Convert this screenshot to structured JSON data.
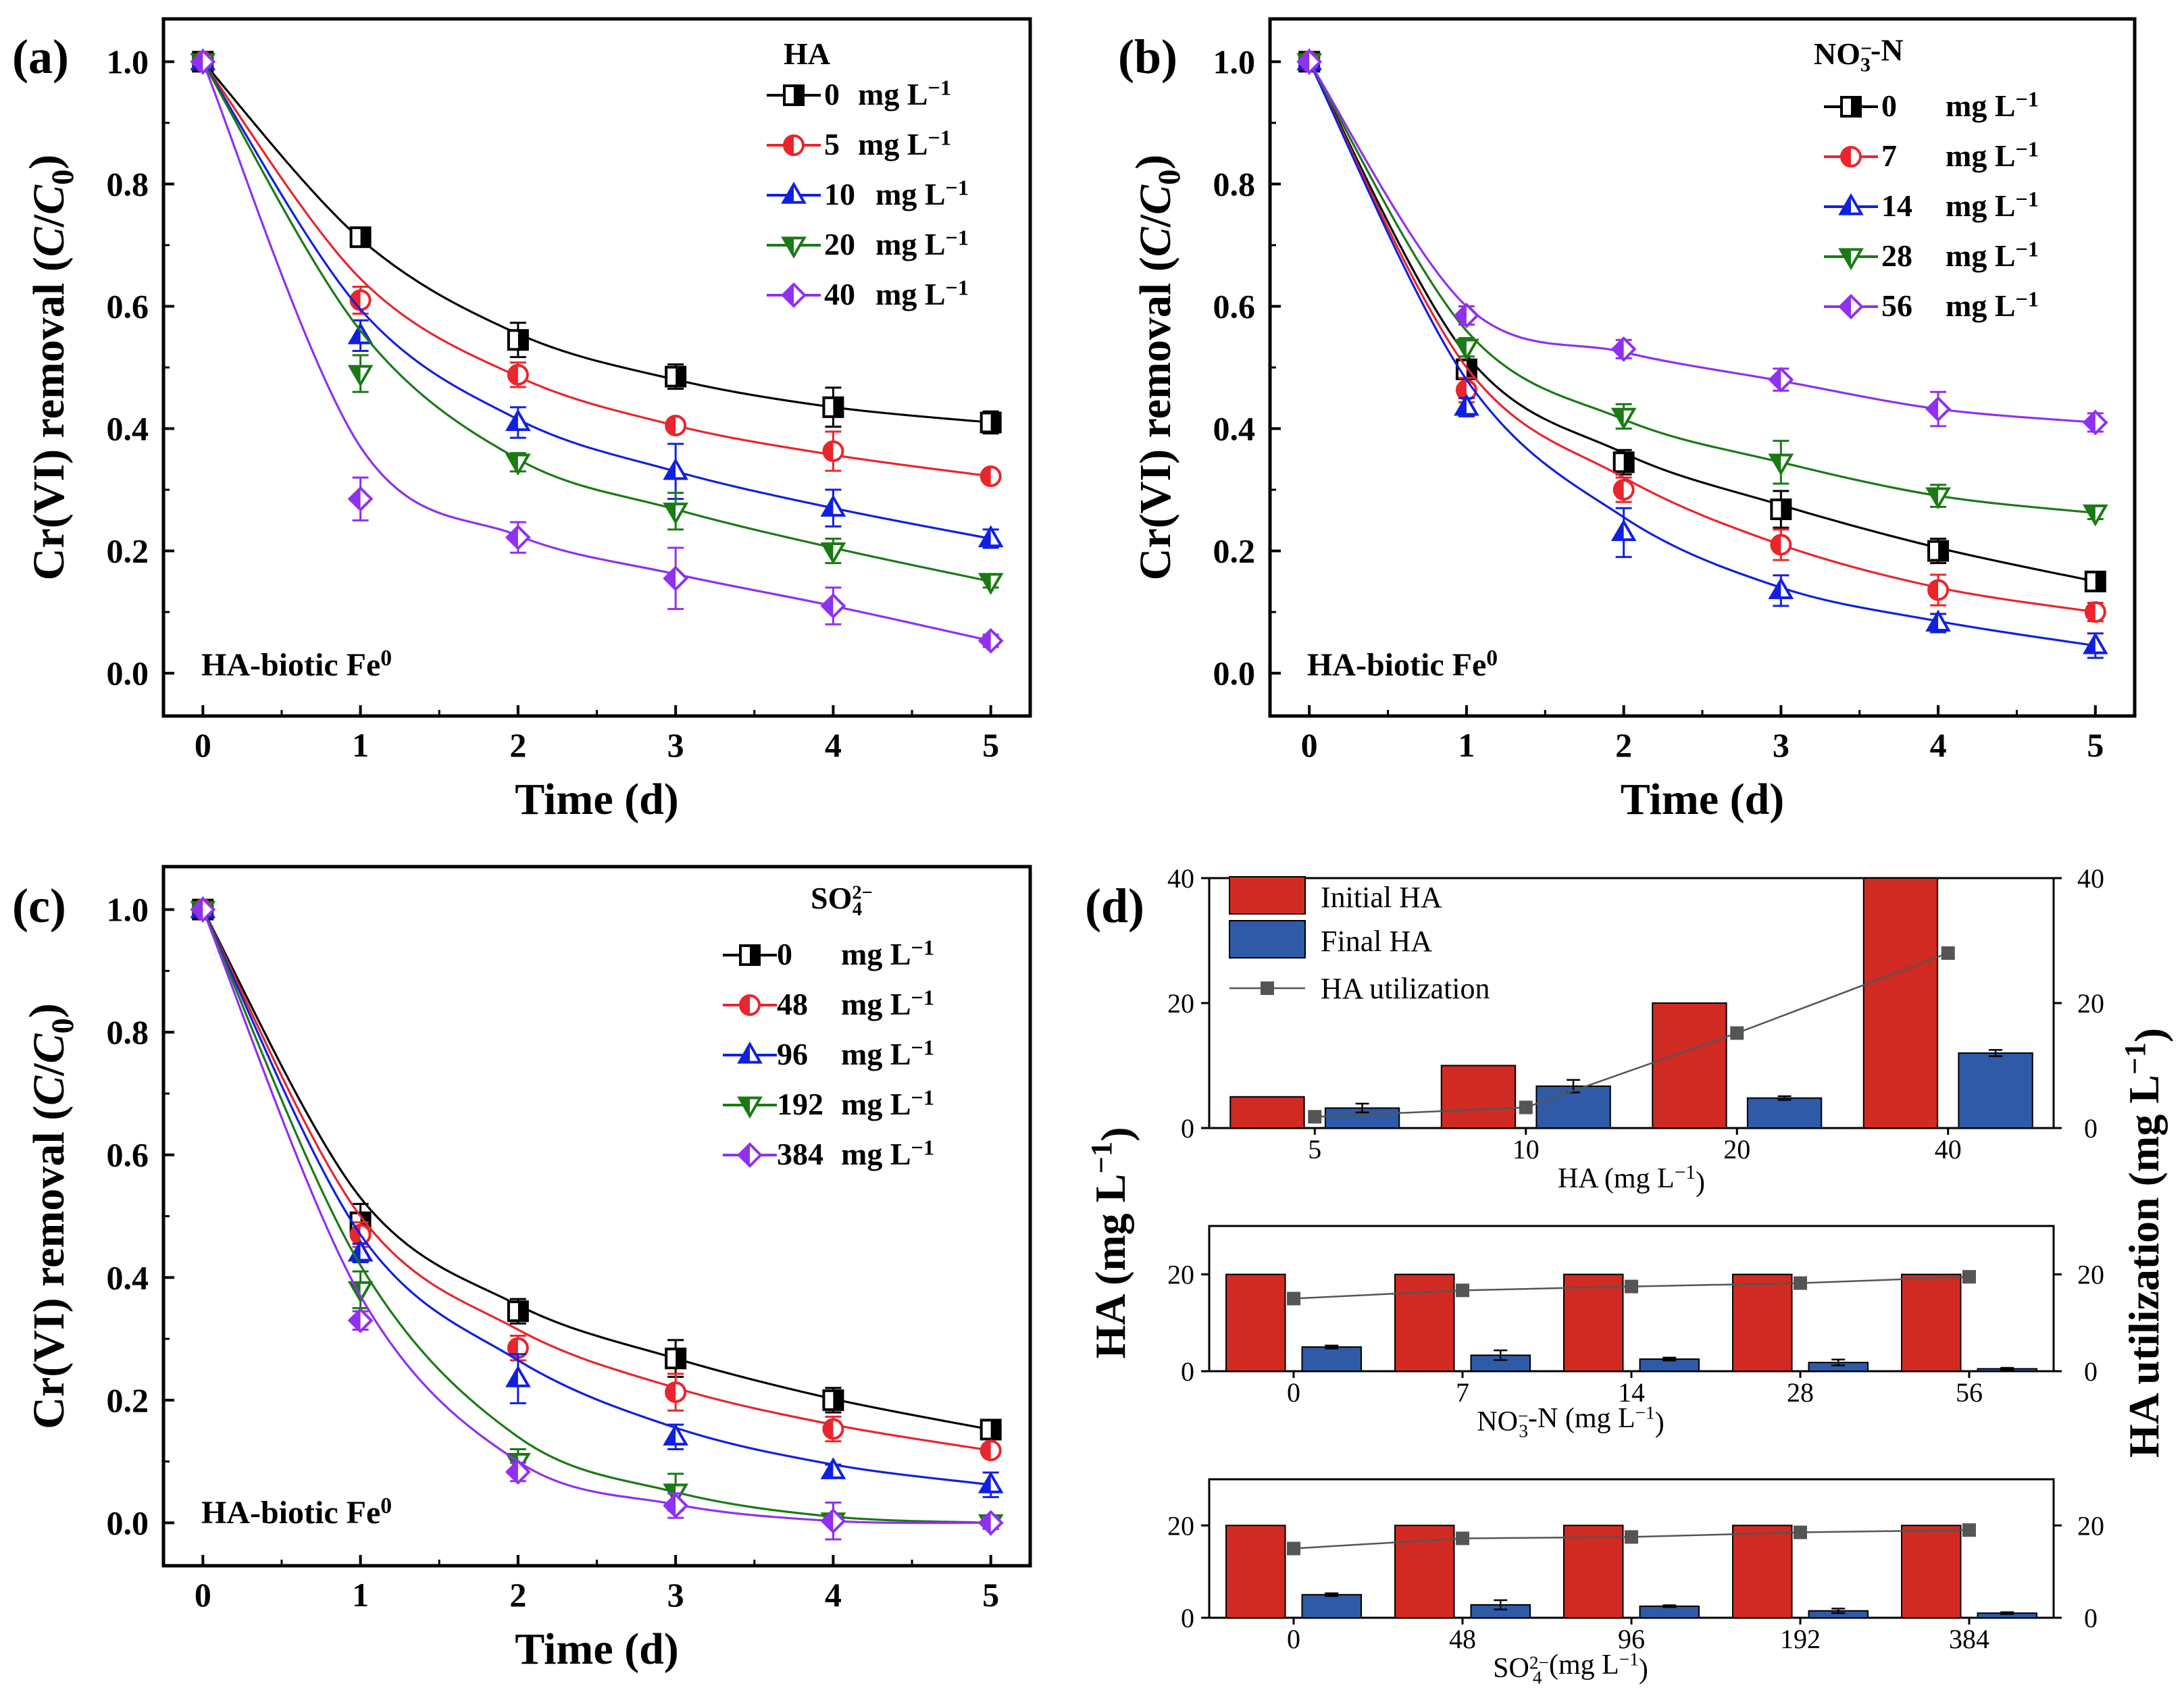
{
  "figure": {
    "panel_labels": [
      "(a)",
      "(b)",
      "(c)",
      "(d)"
    ]
  },
  "chart_data": [
    {
      "panel": "(a)",
      "type": "line",
      "subtype": "scatter-with-fit",
      "xlabel": "Time (d)",
      "ylabel": "Cr(VI) removal (C/C0)",
      "ylabel_parts": [
        "Cr(VI) removal (",
        "C",
        "/",
        "C",
        "0",
        ")"
      ],
      "xlim": [
        -0.25,
        5.25
      ],
      "ylim": [
        -0.07,
        1.07
      ],
      "xticks": [
        0,
        1,
        2,
        3,
        4,
        5
      ],
      "yticks": [
        0.0,
        0.2,
        0.4,
        0.6,
        0.8,
        1.0
      ],
      "ytick_labels": [
        "0.0",
        "0.2",
        "0.4",
        "0.6",
        "0.8",
        "1.0"
      ],
      "legend_title": "HA",
      "annotation": "HA-biotic Fe",
      "annotation_sup": "0",
      "x": [
        0,
        1,
        2,
        3,
        4,
        5
      ],
      "series": [
        {
          "label_value": "0",
          "unit": "mg L",
          "unit_sup": "−1",
          "color": "#000000",
          "marker": "square",
          "values": [
            1.0,
            0.713,
            0.545,
            0.485,
            0.435,
            0.41
          ],
          "err": [
            0,
            0.012,
            0.028,
            0.02,
            0.032,
            0.018
          ],
          "fit": [
            1.0,
            0.71,
            0.555,
            0.48,
            0.435,
            0.41
          ]
        },
        {
          "label_value": "5",
          "unit": "mg L",
          "unit_sup": "−1",
          "color": "#e8262c",
          "marker": "circle",
          "values": [
            1.0,
            0.61,
            0.488,
            0.405,
            0.363,
            0.322
          ],
          "err": [
            0,
            0.022,
            0.02,
            0.01,
            0.032,
            0.01
          ],
          "fit": [
            1.0,
            0.645,
            0.485,
            0.405,
            0.357,
            0.322
          ]
        },
        {
          "label_value": "10",
          "unit": "mg L",
          "unit_sup": "−1",
          "color": "#1020e0",
          "marker": "triangle-up",
          "values": [
            1.0,
            0.552,
            0.41,
            0.33,
            0.27,
            0.22
          ],
          "err": [
            0,
            0.025,
            0.025,
            0.045,
            0.03,
            0.015
          ],
          "fit": [
            1.0,
            0.595,
            0.415,
            0.33,
            0.27,
            0.22
          ]
        },
        {
          "label_value": "20",
          "unit": "mg L",
          "unit_sup": "−1",
          "color": "#1a7a14",
          "marker": "triangle-down",
          "values": [
            1.0,
            0.49,
            0.345,
            0.265,
            0.2,
            0.15
          ],
          "err": [
            0,
            0.03,
            0.015,
            0.03,
            0.02,
            0.01
          ],
          "fit": [
            1.0,
            0.56,
            0.35,
            0.268,
            0.205,
            0.15
          ]
        },
        {
          "label_value": "40",
          "unit": "mg L",
          "unit_sup": "−1",
          "color": "#9030f0",
          "marker": "diamond",
          "values": [
            1.0,
            0.285,
            0.222,
            0.155,
            0.11,
            0.053
          ],
          "err": [
            0,
            0.035,
            0.025,
            0.05,
            0.03,
            0.01
          ],
          "fit": [
            1.0,
            0.37,
            0.225,
            0.162,
            0.11,
            0.053
          ]
        }
      ]
    },
    {
      "panel": "(b)",
      "type": "line",
      "subtype": "scatter-with-fit",
      "xlabel": "Time (d)",
      "ylabel": "Cr(VI) removal (C/C0)",
      "ylabel_parts": [
        "Cr(VI) removal (",
        "C",
        "/",
        "C",
        "0",
        ")"
      ],
      "xlim": [
        -0.25,
        5.25
      ],
      "ylim": [
        -0.07,
        1.07
      ],
      "xticks": [
        0,
        1,
        2,
        3,
        4,
        5
      ],
      "yticks": [
        0.0,
        0.2,
        0.4,
        0.6,
        0.8,
        1.0
      ],
      "ytick_labels": [
        "0.0",
        "0.2",
        "0.4",
        "0.6",
        "0.8",
        "1.0"
      ],
      "legend_title": "NO",
      "legend_title_sub": "3",
      "legend_title_sup": "−",
      "legend_title_tail": "-N",
      "annotation": "HA-biotic Fe",
      "annotation_sup": "0",
      "x": [
        0,
        1,
        2,
        3,
        4,
        5
      ],
      "series": [
        {
          "label_value": "0",
          "unit": "mg L",
          "unit_sup": "−1",
          "color": "#000000",
          "marker": "square",
          "values": [
            1.0,
            0.497,
            0.345,
            0.268,
            0.2,
            0.15
          ],
          "err": [
            0,
            0.015,
            0.02,
            0.03,
            0.02,
            0.012
          ],
          "fit": [
            1.0,
            0.52,
            0.36,
            0.275,
            0.205,
            0.15
          ]
        },
        {
          "label_value": "7",
          "unit": "mg L",
          "unit_sup": "−1",
          "color": "#e8262c",
          "marker": "circle",
          "values": [
            1.0,
            0.463,
            0.3,
            0.21,
            0.136,
            0.1
          ],
          "err": [
            0,
            0.02,
            0.02,
            0.025,
            0.025,
            0.015
          ],
          "fit": [
            1.0,
            0.5,
            0.32,
            0.21,
            0.14,
            0.1
          ]
        },
        {
          "label_value": "14",
          "unit": "mg L",
          "unit_sup": "−1",
          "color": "#1020e0",
          "marker": "triangle-up",
          "values": [
            1.0,
            0.435,
            0.23,
            0.135,
            0.082,
            0.045
          ],
          "err": [
            0,
            0.015,
            0.04,
            0.025,
            0.015,
            0.02
          ],
          "fit": [
            1.0,
            0.48,
            0.255,
            0.14,
            0.085,
            0.045
          ]
        },
        {
          "label_value": "28",
          "unit": "mg L",
          "unit_sup": "−1",
          "color": "#1a7a14",
          "marker": "triangle-down",
          "values": [
            1.0,
            0.533,
            0.42,
            0.345,
            0.29,
            0.262
          ],
          "err": [
            0,
            0.015,
            0.02,
            0.035,
            0.018,
            0.01
          ],
          "fit": [
            1.0,
            0.56,
            0.415,
            0.345,
            0.29,
            0.262
          ]
        },
        {
          "label_value": "56",
          "unit": "mg L",
          "unit_sup": "−1",
          "color": "#9030f0",
          "marker": "diamond",
          "values": [
            1.0,
            0.585,
            0.53,
            0.48,
            0.432,
            0.41
          ],
          "err": [
            0,
            0.015,
            0.015,
            0.018,
            0.028,
            0.015
          ],
          "fit": [
            1.0,
            0.6,
            0.525,
            0.478,
            0.432,
            0.41
          ]
        }
      ]
    },
    {
      "panel": "(c)",
      "type": "line",
      "subtype": "scatter-with-fit",
      "xlabel": "Time (d)",
      "ylabel": "Cr(VI) removal (C/C0)",
      "ylabel_parts": [
        "Cr(VI) removal (",
        "C",
        "/",
        "C",
        "0",
        ")"
      ],
      "xlim": [
        -0.25,
        5.25
      ],
      "ylim": [
        -0.07,
        1.07
      ],
      "xticks": [
        0,
        1,
        2,
        3,
        4,
        5
      ],
      "yticks": [
        0.0,
        0.2,
        0.4,
        0.6,
        0.8,
        1.0
      ],
      "ytick_labels": [
        "0.0",
        "0.2",
        "0.4",
        "0.6",
        "0.8",
        "1.0"
      ],
      "legend_title": "SO",
      "legend_title_sub": "4",
      "legend_title_sup": "2−",
      "annotation": "HA-biotic Fe",
      "annotation_sup": "0",
      "x": [
        0,
        1,
        2,
        3,
        4,
        5
      ],
      "series": [
        {
          "label_value": "0",
          "unit": "mg L",
          "unit_sup": "−1",
          "color": "#000000",
          "marker": "square",
          "values": [
            1.0,
            0.49,
            0.345,
            0.268,
            0.2,
            0.152
          ],
          "err": [
            0,
            0.03,
            0.02,
            0.03,
            0.02,
            0.01
          ],
          "fit": [
            1.0,
            0.53,
            0.355,
            0.268,
            0.202,
            0.152
          ]
        },
        {
          "label_value": "48",
          "unit": "mg L",
          "unit_sup": "−1",
          "color": "#e8262c",
          "marker": "circle",
          "values": [
            1.0,
            0.47,
            0.285,
            0.213,
            0.153,
            0.118
          ],
          "err": [
            0,
            0.02,
            0.02,
            0.03,
            0.02,
            0.01
          ],
          "fit": [
            1.0,
            0.5,
            0.315,
            0.22,
            0.16,
            0.118
          ]
        },
        {
          "label_value": "96",
          "unit": "mg L",
          "unit_sup": "−1",
          "color": "#1020e0",
          "marker": "triangle-up",
          "values": [
            1.0,
            0.44,
            0.235,
            0.14,
            0.085,
            0.062
          ],
          "err": [
            0,
            0.015,
            0.04,
            0.02,
            0.01,
            0.02
          ],
          "fit": [
            1.0,
            0.47,
            0.265,
            0.155,
            0.095,
            0.062
          ]
        },
        {
          "label_value": "192",
          "unit": "mg L",
          "unit_sup": "−1",
          "color": "#1a7a14",
          "marker": "triangle-down",
          "values": [
            1.0,
            0.38,
            0.1,
            0.05,
            0.003,
            0.0
          ],
          "err": [
            0,
            0.03,
            0.02,
            0.03,
            0.03,
            0.01
          ],
          "fit": [
            1.0,
            0.42,
            0.14,
            0.05,
            0.01,
            0.0
          ]
        },
        {
          "label_value": "384",
          "unit": "mg L",
          "unit_sup": "−1",
          "color": "#9030f0",
          "marker": "diamond",
          "values": [
            1.0,
            0.33,
            0.083,
            0.028,
            0.003,
            0.0
          ],
          "err": [
            0,
            0.015,
            0.015,
            0.02,
            0.03,
            0.01
          ],
          "fit": [
            1.0,
            0.37,
            0.1,
            0.03,
            0.003,
            0.0
          ]
        }
      ]
    },
    {
      "panel": "(d)",
      "type": "bar",
      "subtype": "grouped-bar-with-line",
      "ylabel_left": "HA (mg L",
      "ylabel_left_sup": "−1",
      "ylabel_left_tail": ")",
      "ylabel_right": "HA utilization (mg L",
      "ylabel_right_sup": "−1",
      "ylabel_right_tail": ")",
      "legend": [
        {
          "label": "Initial  HA",
          "color": "#d12a22",
          "kind": "bar"
        },
        {
          "label": "Final HA",
          "color": "#2e5aa8",
          "kind": "bar"
        },
        {
          "label": "HA utilization",
          "color": "#555555",
          "kind": "line"
        }
      ],
      "subplots": [
        {
          "xlabel": "HA  (mg L",
          "xlabel_sup": "−1",
          "xlabel_tail": ")",
          "categories": [
            "5",
            "10",
            "20",
            "40"
          ],
          "ylim": [
            0,
            40
          ],
          "yticks": [
            0,
            20,
            40
          ],
          "right_ylim": [
            0,
            40
          ],
          "right_yticks": [
            0,
            20,
            40
          ],
          "series": [
            {
              "name": "Initial  HA",
              "values": [
                5,
                10,
                20,
                40
              ]
            },
            {
              "name": "Final HA",
              "values": [
                3.2,
                6.7,
                4.8,
                12.0
              ],
              "err": [
                0.7,
                1.0,
                0.3,
                0.5
              ]
            },
            {
              "name": "HA utilization",
              "values": [
                1.8,
                3.3,
                15.2,
                28.0
              ]
            }
          ]
        },
        {
          "xlabel": "NO",
          "xlabel_sub": "3",
          "xlabel_sup": "−",
          "xlabel_tail": "-N  (mg L",
          "xlabel_tail_sup": "−1",
          "xlabel_end": ")",
          "categories": [
            "0",
            "7",
            "14",
            "28",
            "56"
          ],
          "ylim": [
            0,
            30
          ],
          "yticks": [
            0,
            20
          ],
          "right_ylim": [
            0,
            30
          ],
          "right_yticks": [
            0,
            20
          ],
          "series": [
            {
              "name": "Initial  HA",
              "values": [
                20,
                20,
                20,
                20,
                20
              ]
            },
            {
              "name": "Final HA",
              "values": [
                5.0,
                3.3,
                2.5,
                1.8,
                0.5
              ],
              "err": [
                0.3,
                1.0,
                0.3,
                0.6,
                0.2
              ]
            },
            {
              "name": "HA utilization",
              "values": [
                15.0,
                16.7,
                17.5,
                18.2,
                19.5
              ]
            }
          ]
        },
        {
          "xlabel": "SO",
          "xlabel_sub": "4",
          "xlabel_sup": "2−",
          "xlabel_tail": "  (mg L",
          "xlabel_tail_sup": "−1",
          "xlabel_end": ")",
          "categories": [
            "0",
            "48",
            "96",
            "192",
            "384"
          ],
          "ylim": [
            0,
            30
          ],
          "yticks": [
            0,
            20
          ],
          "right_ylim": [
            0,
            30
          ],
          "right_yticks": [
            0,
            20
          ],
          "series": [
            {
              "name": "Initial  HA",
              "values": [
                20,
                20,
                20,
                20,
                20
              ]
            },
            {
              "name": "Final HA",
              "values": [
                5.0,
                2.8,
                2.5,
                1.5,
                1.0
              ],
              "err": [
                0.3,
                1.0,
                0.2,
                0.5,
                0.2
              ]
            },
            {
              "name": "HA utilization",
              "values": [
                15.0,
                17.2,
                17.5,
                18.5,
                19.0
              ]
            }
          ]
        }
      ]
    }
  ]
}
